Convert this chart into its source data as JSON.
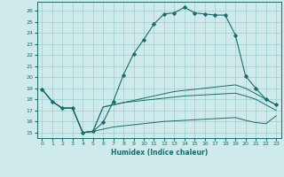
{
  "xlabel": "Humidex (Indice chaleur)",
  "xlim": [
    -0.5,
    23.5
  ],
  "ylim": [
    14.5,
    26.8
  ],
  "xticks": [
    0,
    1,
    2,
    3,
    4,
    5,
    6,
    7,
    8,
    9,
    10,
    11,
    12,
    13,
    14,
    15,
    16,
    17,
    18,
    19,
    20,
    21,
    22,
    23
  ],
  "yticks": [
    15,
    16,
    17,
    18,
    19,
    20,
    21,
    22,
    23,
    24,
    25,
    26
  ],
  "bg_color": "#ceeaea",
  "grid_color": "#9ecece",
  "line_color": "#1a6b6b",
  "curve1_x": [
    0,
    1,
    2,
    3,
    4,
    5,
    6,
    7,
    8,
    9,
    10,
    11,
    12,
    13,
    14,
    15,
    16,
    17,
    18,
    19,
    20,
    21,
    22,
    23
  ],
  "curve1_y": [
    18.9,
    17.8,
    17.2,
    17.2,
    15.0,
    15.1,
    15.9,
    17.8,
    20.2,
    22.1,
    23.4,
    24.8,
    25.7,
    25.8,
    26.3,
    25.8,
    25.7,
    25.6,
    25.6,
    23.8,
    20.1,
    19.0,
    18.0,
    17.5
  ],
  "curve2_x": [
    0,
    1,
    2,
    3,
    4,
    5,
    6,
    7,
    8,
    9,
    10,
    11,
    12,
    13,
    14,
    15,
    16,
    17,
    18,
    19,
    20,
    21,
    22,
    23
  ],
  "curve2_y": [
    18.9,
    17.8,
    17.2,
    17.2,
    15.0,
    15.1,
    17.3,
    17.5,
    17.7,
    17.9,
    18.1,
    18.3,
    18.5,
    18.7,
    18.8,
    18.9,
    19.0,
    19.1,
    19.2,
    19.3,
    19.0,
    18.5,
    18.0,
    17.5
  ],
  "curve3_x": [
    0,
    1,
    2,
    3,
    4,
    5,
    6,
    7,
    8,
    9,
    10,
    11,
    12,
    13,
    14,
    15,
    16,
    17,
    18,
    19,
    20,
    21,
    22,
    23
  ],
  "curve3_y": [
    18.9,
    17.8,
    17.2,
    17.2,
    15.0,
    15.1,
    17.3,
    17.5,
    17.7,
    17.8,
    17.9,
    18.0,
    18.1,
    18.2,
    18.3,
    18.35,
    18.4,
    18.45,
    18.5,
    18.55,
    18.3,
    18.0,
    17.5,
    17.0
  ],
  "curve4_x": [
    0,
    1,
    2,
    3,
    4,
    5,
    6,
    7,
    8,
    9,
    10,
    11,
    12,
    13,
    14,
    15,
    16,
    17,
    18,
    19,
    20,
    21,
    22,
    23
  ],
  "curve4_y": [
    18.9,
    17.8,
    17.2,
    17.2,
    15.0,
    15.1,
    15.3,
    15.5,
    15.6,
    15.7,
    15.8,
    15.9,
    16.0,
    16.05,
    16.1,
    16.15,
    16.2,
    16.25,
    16.3,
    16.35,
    16.1,
    15.9,
    15.8,
    16.5
  ]
}
